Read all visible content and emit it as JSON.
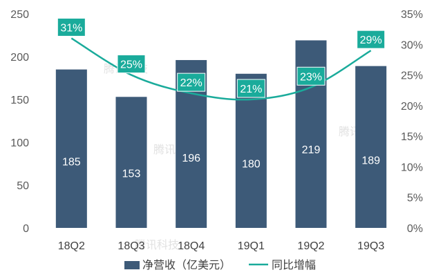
{
  "chart_data": {
    "type": "bar+line",
    "categories": [
      "18Q2",
      "18Q3",
      "18Q4",
      "19Q1",
      "19Q2",
      "19Q3"
    ],
    "series": [
      {
        "name": "净营收（亿美元）",
        "type": "bar",
        "axis": "left",
        "values": [
          185,
          153,
          196,
          180,
          219,
          189
        ]
      },
      {
        "name": "同比增幅",
        "type": "line",
        "axis": "right",
        "values": [
          31,
          25,
          22,
          21,
          23,
          29
        ]
      }
    ],
    "bar_value_labels": [
      "185",
      "153",
      "196",
      "180",
      "219",
      "189"
    ],
    "line_value_labels": [
      "31%",
      "25%",
      "22%",
      "21%",
      "23%",
      "29%"
    ],
    "y_left": {
      "ylim": [
        0,
        250
      ],
      "ticks": [
        "0",
        "50",
        "100",
        "150",
        "200",
        "250"
      ]
    },
    "y_right": {
      "ylim": [
        0,
        35
      ],
      "ticks": [
        "0%",
        "5%",
        "10%",
        "15%",
        "20%",
        "25%",
        "30%",
        "35%"
      ]
    },
    "legend_position": "bottom",
    "grid": false,
    "colors": {
      "bar": "#3d5a78",
      "line": "#1aab9b",
      "line_label_bg": "#1aab9b"
    },
    "watermark": "腾讯科技"
  }
}
